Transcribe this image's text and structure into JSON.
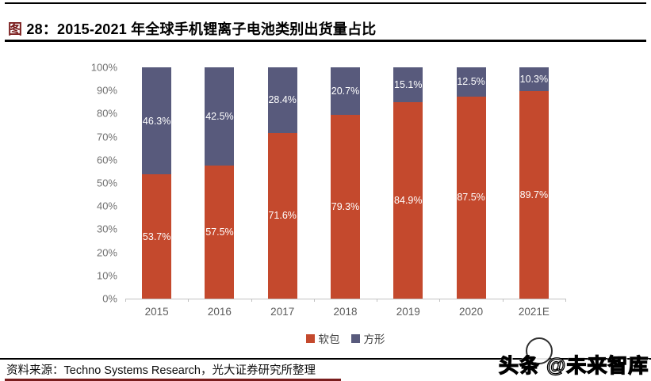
{
  "header": {
    "tag": "图 ",
    "title": "28：2015-2021 年全球手机锂离子电池类别出货量占比"
  },
  "chart_data": {
    "type": "bar",
    "stacked": true,
    "title": "2015-2021 年全球手机锂离子电池类别出货量占比",
    "categories": [
      "2015",
      "2016",
      "2017",
      "2018",
      "2019",
      "2020",
      "2021E"
    ],
    "series": [
      {
        "name": "软包",
        "color": "#c4492d",
        "values": [
          53.7,
          57.5,
          71.6,
          79.3,
          84.9,
          87.5,
          89.7
        ]
      },
      {
        "name": "方形",
        "color": "#585a7c",
        "values": [
          46.3,
          42.5,
          28.4,
          20.7,
          15.1,
          12.5,
          10.3
        ]
      }
    ],
    "value_suffix": "%",
    "ylim": [
      0,
      100
    ],
    "ytick_step": 10,
    "ytick_labels": [
      "0%",
      "10%",
      "20%",
      "30%",
      "40%",
      "50%",
      "60%",
      "70%",
      "80%",
      "90%",
      "100%"
    ],
    "grid": false,
    "legend_position": "bottom",
    "data_label_color": "#ffffff",
    "axis_line_color": "#c2c2c2",
    "tick_label_color": "#717171"
  },
  "footer": {
    "source": "资料来源：Techno Systems Research，光大证券研究所整理"
  },
  "watermark": {
    "prefix": "头条 ",
    "handle": "@未来智库"
  }
}
